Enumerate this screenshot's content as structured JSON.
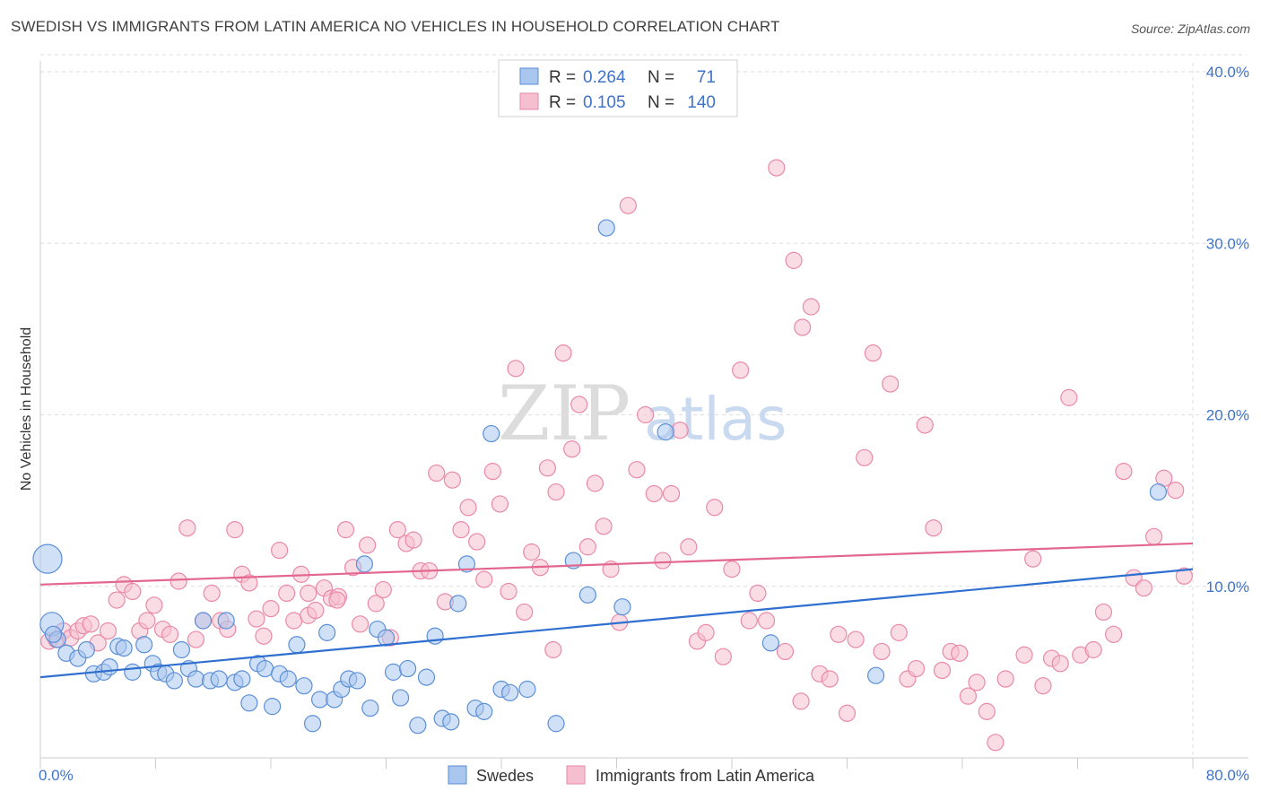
{
  "header": {
    "title": "SWEDISH VS IMMIGRANTS FROM LATIN AMERICA NO VEHICLES IN HOUSEHOLD CORRELATION CHART",
    "source": "Source: ZipAtlas.com"
  },
  "watermark": {
    "part1": "ZIP",
    "part2": "atlas"
  },
  "colors": {
    "blue_fill": "#a9c6ee",
    "blue_stroke": "#5b8fd6",
    "blue_line": "#2f6fd0",
    "pink_fill": "#f6bfd0",
    "pink_stroke": "#e98aa8",
    "pink_line": "#e2668f",
    "tick_text": "#3f73c9",
    "grid": "#dddddd"
  },
  "legend": {
    "rows": [
      {
        "r_label": "R =",
        "r_value": "0.264",
        "n_label": "N =",
        "n_value": "71"
      },
      {
        "r_label": "R =",
        "r_value": "0.105",
        "n_label": "N =",
        "n_value": "140"
      }
    ]
  },
  "chart_data": {
    "type": "scatter",
    "title": "SWEDISH VS IMMIGRANTS FROM LATIN AMERICA NO VEHICLES IN HOUSEHOLD CORRELATION CHART",
    "ylabel": "No Vehicles in Household",
    "xlabel": "",
    "xlim": [
      0,
      80
    ],
    "ylim": [
      0,
      40
    ],
    "x_tick_labels": [
      "0.0%",
      "80.0%"
    ],
    "y_ticks": [
      10,
      20,
      30,
      40
    ],
    "y_tick_labels": [
      "10.0%",
      "20.0%",
      "30.0%",
      "40.0%"
    ],
    "grid": true,
    "legend_position": "top-center",
    "series": [
      {
        "name": "Swedes",
        "r": 0.264,
        "n": 71,
        "trend": {
          "x": [
            0,
            80
          ],
          "y": [
            4.7,
            11.0
          ]
        },
        "points": [
          [
            0.5,
            11.6
          ],
          [
            0.8,
            7.8
          ],
          [
            1.2,
            6.9
          ],
          [
            1.8,
            6.1
          ],
          [
            2.6,
            5.8
          ],
          [
            3.2,
            6.3
          ],
          [
            3.7,
            4.9
          ],
          [
            4.4,
            5.0
          ],
          [
            4.8,
            5.3
          ],
          [
            5.4,
            6.5
          ],
          [
            5.8,
            6.4
          ],
          [
            6.4,
            5.0
          ],
          [
            7.2,
            6.6
          ],
          [
            7.8,
            5.5
          ],
          [
            8.2,
            5.0
          ],
          [
            8.7,
            4.9
          ],
          [
            9.3,
            4.5
          ],
          [
            9.8,
            6.3
          ],
          [
            10.3,
            5.2
          ],
          [
            10.8,
            4.6
          ],
          [
            11.3,
            8.0
          ],
          [
            11.8,
            4.5
          ],
          [
            12.4,
            4.6
          ],
          [
            12.9,
            8.0
          ],
          [
            13.5,
            4.4
          ],
          [
            14.0,
            4.6
          ],
          [
            14.5,
            3.2
          ],
          [
            15.1,
            5.5
          ],
          [
            15.6,
            5.2
          ],
          [
            16.1,
            3.0
          ],
          [
            16.6,
            4.9
          ],
          [
            17.2,
            4.6
          ],
          [
            17.8,
            6.6
          ],
          [
            18.3,
            4.2
          ],
          [
            18.9,
            2.0
          ],
          [
            19.4,
            3.4
          ],
          [
            19.9,
            7.3
          ],
          [
            20.4,
            3.4
          ],
          [
            20.9,
            4.0
          ],
          [
            21.4,
            4.6
          ],
          [
            22.0,
            4.5
          ],
          [
            22.5,
            11.3
          ],
          [
            22.9,
            2.9
          ],
          [
            23.4,
            7.5
          ],
          [
            24.0,
            7.0
          ],
          [
            24.5,
            5.0
          ],
          [
            25.0,
            3.5
          ],
          [
            25.5,
            5.2
          ],
          [
            26.2,
            1.9
          ],
          [
            26.8,
            4.7
          ],
          [
            27.4,
            7.1
          ],
          [
            27.9,
            2.3
          ],
          [
            28.5,
            2.1
          ],
          [
            29.0,
            9.0
          ],
          [
            29.6,
            11.3
          ],
          [
            30.2,
            2.9
          ],
          [
            30.8,
            2.7
          ],
          [
            31.3,
            18.9
          ],
          [
            32.0,
            4.0
          ],
          [
            32.6,
            3.8
          ],
          [
            33.8,
            4.0
          ],
          [
            35.8,
            2.0
          ],
          [
            37.0,
            11.5
          ],
          [
            38.0,
            9.5
          ],
          [
            39.3,
            30.9
          ],
          [
            40.4,
            8.8
          ],
          [
            43.4,
            19.0
          ],
          [
            50.7,
            6.7
          ],
          [
            58.0,
            4.8
          ],
          [
            77.6,
            15.5
          ],
          [
            0.9,
            7.2
          ]
        ]
      },
      {
        "name": "Immigrants from Latin America",
        "r": 0.105,
        "n": 140,
        "trend": {
          "x": [
            0,
            80
          ],
          "y": [
            10.1,
            12.5
          ]
        },
        "points": [
          [
            0.6,
            6.8
          ],
          [
            1.1,
            6.9
          ],
          [
            1.6,
            7.4
          ],
          [
            2.1,
            7.0
          ],
          [
            2.6,
            7.4
          ],
          [
            3.0,
            7.7
          ],
          [
            3.5,
            7.8
          ],
          [
            4.0,
            6.7
          ],
          [
            4.7,
            7.4
          ],
          [
            5.3,
            9.2
          ],
          [
            5.8,
            10.1
          ],
          [
            6.4,
            9.7
          ],
          [
            6.9,
            7.4
          ],
          [
            7.4,
            8.0
          ],
          [
            7.9,
            8.9
          ],
          [
            8.5,
            7.5
          ],
          [
            9.0,
            7.2
          ],
          [
            9.6,
            10.3
          ],
          [
            10.2,
            13.4
          ],
          [
            10.8,
            6.9
          ],
          [
            11.3,
            8.0
          ],
          [
            11.9,
            9.6
          ],
          [
            12.5,
            8.0
          ],
          [
            13.0,
            7.5
          ],
          [
            13.5,
            13.3
          ],
          [
            14.0,
            10.7
          ],
          [
            14.5,
            10.2
          ],
          [
            15.0,
            8.1
          ],
          [
            15.5,
            7.1
          ],
          [
            16.0,
            8.7
          ],
          [
            16.6,
            12.1
          ],
          [
            17.1,
            9.6
          ],
          [
            17.6,
            8.0
          ],
          [
            18.1,
            10.7
          ],
          [
            18.6,
            8.3
          ],
          [
            19.1,
            8.6
          ],
          [
            19.7,
            9.9
          ],
          [
            20.2,
            9.3
          ],
          [
            20.7,
            9.4
          ],
          [
            21.2,
            13.3
          ],
          [
            21.7,
            11.1
          ],
          [
            22.2,
            7.8
          ],
          [
            22.7,
            12.4
          ],
          [
            23.3,
            9.0
          ],
          [
            23.8,
            9.8
          ],
          [
            24.3,
            7.0
          ],
          [
            24.8,
            13.3
          ],
          [
            25.4,
            12.5
          ],
          [
            25.9,
            12.7
          ],
          [
            26.4,
            10.9
          ],
          [
            27.0,
            10.9
          ],
          [
            27.5,
            16.6
          ],
          [
            28.1,
            9.1
          ],
          [
            28.6,
            16.2
          ],
          [
            29.2,
            13.3
          ],
          [
            29.7,
            14.6
          ],
          [
            30.3,
            12.6
          ],
          [
            30.8,
            10.4
          ],
          [
            31.4,
            16.7
          ],
          [
            31.9,
            14.8
          ],
          [
            32.5,
            9.7
          ],
          [
            33.0,
            22.7
          ],
          [
            33.6,
            8.5
          ],
          [
            34.1,
            12.0
          ],
          [
            34.7,
            11.1
          ],
          [
            35.2,
            16.9
          ],
          [
            35.8,
            15.5
          ],
          [
            36.3,
            23.6
          ],
          [
            36.9,
            18.0
          ],
          [
            37.4,
            20.6
          ],
          [
            38.0,
            12.3
          ],
          [
            38.5,
            16.0
          ],
          [
            39.1,
            13.5
          ],
          [
            39.6,
            11.0
          ],
          [
            40.2,
            7.9
          ],
          [
            40.8,
            32.2
          ],
          [
            41.4,
            16.8
          ],
          [
            42.0,
            20.0
          ],
          [
            42.6,
            15.4
          ],
          [
            43.2,
            11.5
          ],
          [
            43.8,
            15.4
          ],
          [
            44.4,
            19.1
          ],
          [
            45.0,
            12.3
          ],
          [
            45.6,
            6.8
          ],
          [
            46.2,
            7.3
          ],
          [
            46.8,
            14.6
          ],
          [
            47.4,
            5.9
          ],
          [
            48.0,
            11.0
          ],
          [
            48.6,
            22.6
          ],
          [
            49.2,
            8.0
          ],
          [
            49.8,
            9.6
          ],
          [
            50.4,
            8.0
          ],
          [
            51.1,
            34.4
          ],
          [
            51.7,
            6.2
          ],
          [
            52.3,
            29.0
          ],
          [
            52.9,
            25.1
          ],
          [
            53.5,
            26.3
          ],
          [
            54.1,
            4.9
          ],
          [
            54.8,
            4.6
          ],
          [
            55.4,
            7.2
          ],
          [
            56.0,
            2.6
          ],
          [
            56.6,
            6.9
          ],
          [
            57.2,
            17.5
          ],
          [
            57.8,
            23.6
          ],
          [
            58.4,
            6.2
          ],
          [
            59.0,
            21.8
          ],
          [
            59.6,
            7.3
          ],
          [
            60.2,
            4.6
          ],
          [
            60.8,
            5.2
          ],
          [
            61.4,
            19.4
          ],
          [
            62.0,
            13.4
          ],
          [
            62.6,
            5.1
          ],
          [
            63.2,
            6.2
          ],
          [
            63.8,
            6.1
          ],
          [
            64.4,
            3.6
          ],
          [
            65.0,
            4.4
          ],
          [
            65.7,
            2.7
          ],
          [
            66.3,
            0.9
          ],
          [
            67.0,
            4.6
          ],
          [
            68.3,
            6.0
          ],
          [
            68.9,
            11.6
          ],
          [
            69.6,
            4.2
          ],
          [
            70.2,
            5.8
          ],
          [
            70.8,
            5.5
          ],
          [
            71.4,
            21.0
          ],
          [
            72.2,
            6.0
          ],
          [
            73.1,
            6.3
          ],
          [
            73.8,
            8.5
          ],
          [
            74.5,
            7.2
          ],
          [
            75.2,
            16.7
          ],
          [
            75.9,
            10.5
          ],
          [
            76.6,
            9.9
          ],
          [
            77.3,
            12.9
          ],
          [
            78.0,
            16.3
          ],
          [
            78.8,
            15.6
          ],
          [
            79.4,
            10.6
          ],
          [
            20.6,
            9.2
          ],
          [
            18.6,
            9.6
          ],
          [
            35.6,
            6.3
          ],
          [
            52.8,
            3.3
          ]
        ]
      }
    ]
  },
  "bottom_legend": {
    "items": [
      {
        "label": "Swedes"
      },
      {
        "label": "Immigrants from Latin America"
      }
    ]
  }
}
